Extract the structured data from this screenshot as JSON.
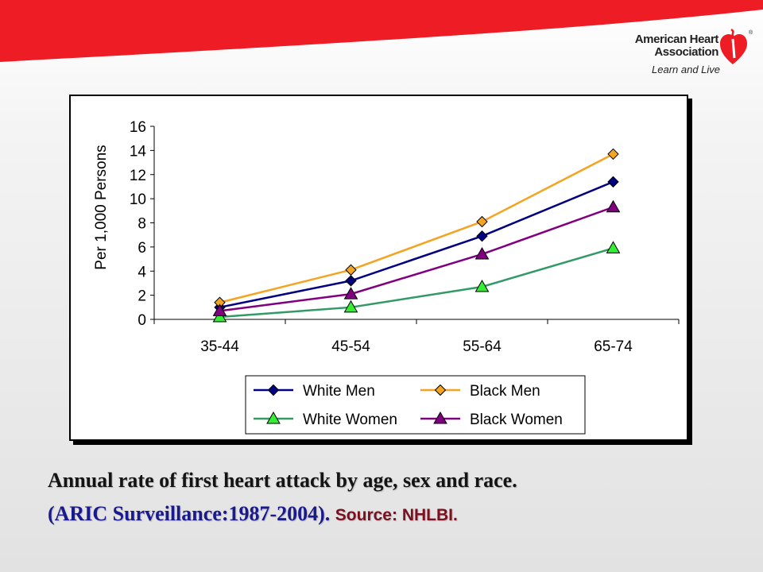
{
  "brand": {
    "name_line1": "American Heart",
    "name_line2": "Association",
    "tagline": "Learn and Live",
    "registered_mark": "®",
    "colors": {
      "red": "#ee1c25",
      "text": "#222222"
    }
  },
  "caption": {
    "line1": "Annual rate of first heart attack by age, sex and race.",
    "line2_main": "(ARIC Surveillance:1987-2004).",
    "line2_source": "Source: NHLBI."
  },
  "chart_data": {
    "type": "line",
    "ylabel": "Per 1,000 Persons",
    "xlabel": "",
    "categories": [
      "35-44",
      "45-54",
      "55-64",
      "65-74"
    ],
    "ylim": [
      0,
      16
    ],
    "yticks": [
      0,
      2,
      4,
      6,
      8,
      10,
      12,
      14,
      16
    ],
    "grid": false,
    "legend_position": "bottom",
    "series": [
      {
        "name": "White Men",
        "values": [
          1.0,
          3.2,
          6.9,
          11.4
        ],
        "color": "#000080",
        "marker": "diamond",
        "marker_fill": "#000080"
      },
      {
        "name": "Black Men",
        "values": [
          1.4,
          4.1,
          8.1,
          13.7
        ],
        "color": "#f4a420",
        "marker": "diamond",
        "marker_fill": "#f4a420"
      },
      {
        "name": "White Women",
        "values": [
          0.2,
          1.0,
          2.7,
          5.9
        ],
        "color": "#339966",
        "marker": "triangle",
        "marker_fill": "#33ee33"
      },
      {
        "name": "Black Women",
        "values": [
          0.7,
          2.1,
          5.4,
          9.3
        ],
        "color": "#800080",
        "marker": "triangle",
        "marker_fill": "#800080"
      }
    ]
  }
}
